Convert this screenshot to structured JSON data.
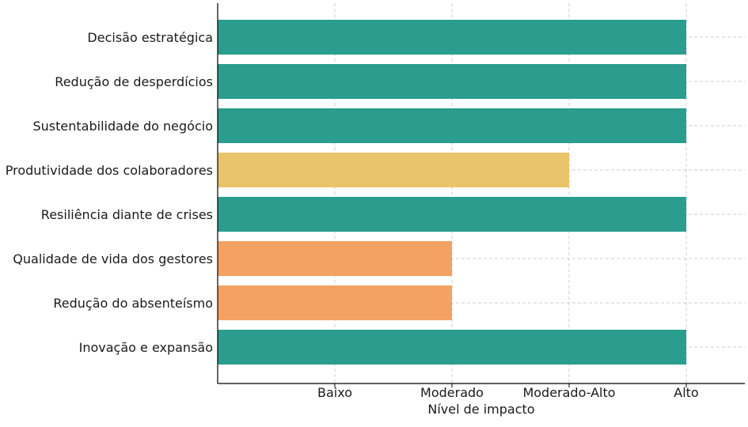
{
  "chart_data": {
    "type": "bar",
    "orientation": "horizontal",
    "categories": [
      "Decisão estratégica",
      "Redução de desperdícios",
      "Sustentabilidade do negócio",
      "Produtividade dos colaboradores",
      "Resiliência diante de crises",
      "Qualidade de vida dos gestores",
      "Redução do absenteísmo",
      "Inovação e expansão"
    ],
    "values": [
      4,
      4,
      4,
      3,
      4,
      2,
      2,
      4
    ],
    "value_labels": [
      "Alto",
      "Alto",
      "Alto",
      "Moderado-Alto",
      "Alto",
      "Moderado",
      "Moderado",
      "Alto"
    ],
    "colors": [
      "#2a9d8f",
      "#2a9d8f",
      "#2a9d8f",
      "#e9c46a",
      "#2a9d8f",
      "#f4a261",
      "#f4a261",
      "#2a9d8f"
    ],
    "x_ticks": [
      {
        "value": 1,
        "label": "Baixo"
      },
      {
        "value": 2,
        "label": "Moderado"
      },
      {
        "value": 3,
        "label": "Moderado-Alto"
      },
      {
        "value": 4,
        "label": "Alto"
      }
    ],
    "xlim": [
      0,
      4.5
    ],
    "xlabel": "Nível de impacto",
    "ylabel": "",
    "title": "",
    "grid": true,
    "legend": false
  }
}
